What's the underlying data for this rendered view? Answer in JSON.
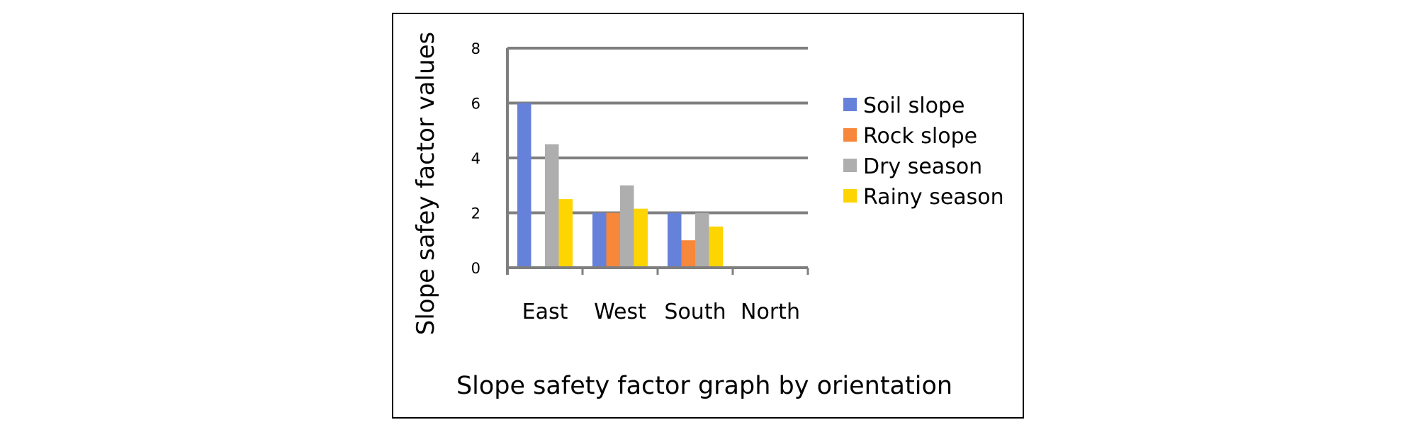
{
  "chart_data": {
    "type": "bar",
    "title": "Slope safety factor graph by orientation",
    "xlabel": "",
    "ylabel": "Slope safey factor values",
    "categories": [
      "East",
      "West",
      "South",
      "North"
    ],
    "series": [
      {
        "name": "Soil slope",
        "color": "#6581D9",
        "values": [
          6,
          2,
          2,
          0
        ]
      },
      {
        "name": "Rock slope",
        "color": "#F6873B",
        "values": [
          0,
          2,
          1,
          0
        ]
      },
      {
        "name": "Dry season",
        "color": "#AEAEAE",
        "values": [
          4.5,
          3,
          2,
          0
        ]
      },
      {
        "name": "Rainy season",
        "color": "#FED500",
        "values": [
          2.5,
          2.15,
          1.5,
          0
        ]
      }
    ],
    "ylim": [
      0,
      8
    ],
    "yticks": [
      "0",
      "2",
      "4",
      "6",
      "8"
    ],
    "grid": true,
    "legend_position": "right"
  }
}
